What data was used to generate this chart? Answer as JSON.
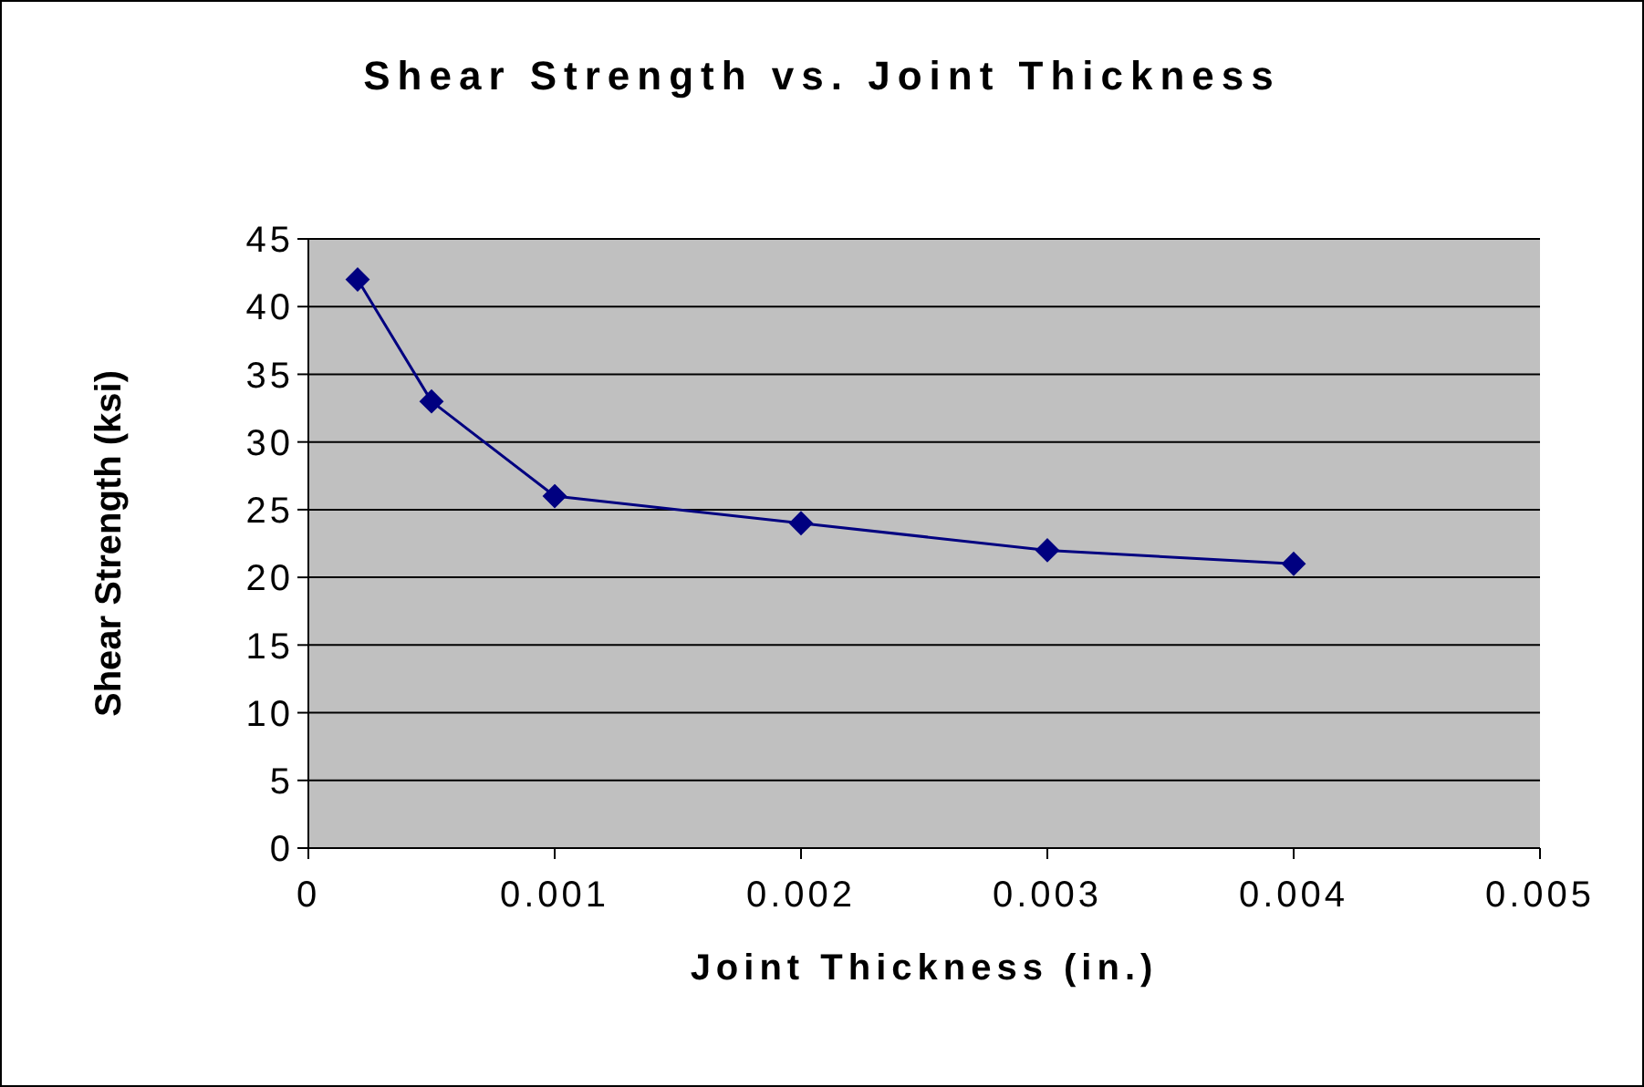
{
  "chart_data": {
    "type": "line",
    "title": "Shear Strength vs. Joint Thickness",
    "xlabel": "Joint Thickness (in.)",
    "ylabel": "Shear Strength (ksi)",
    "x": [
      0.0002,
      0.0005,
      0.001,
      0.002,
      0.003,
      0.004
    ],
    "series": [
      {
        "color": "#000080",
        "values": [
          42,
          33,
          26,
          24,
          22,
          21
        ]
      }
    ],
    "xlim": [
      0,
      0.005
    ],
    "xticks": [
      0,
      0.001,
      0.002,
      0.003,
      0.004,
      0.005
    ],
    "ylim": [
      0,
      45
    ],
    "yticks": [
      0,
      5,
      10,
      15,
      20,
      25,
      30,
      35,
      40,
      45
    ],
    "grid": "y",
    "marker": "diamond",
    "line_style": "solid"
  }
}
